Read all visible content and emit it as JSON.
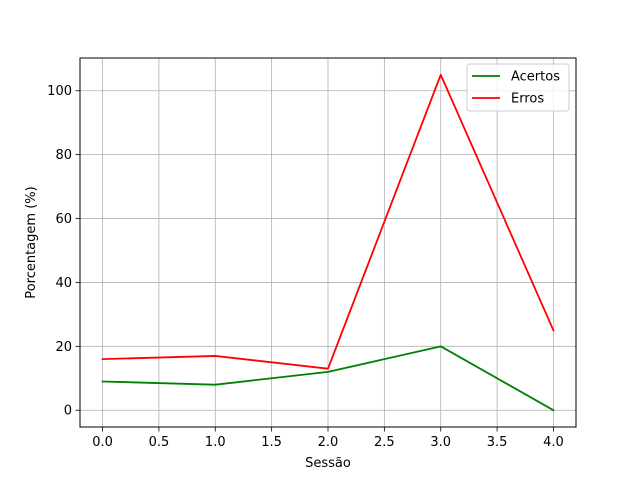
{
  "chart_data": {
    "type": "line",
    "title": "",
    "xlabel": "Sessão",
    "ylabel": "Porcentagem (%)",
    "x": [
      0,
      1,
      2,
      3,
      4
    ],
    "series": [
      {
        "name": "Acertos",
        "color": "#008000",
        "values": [
          9,
          8,
          12,
          20,
          0
        ]
      },
      {
        "name": "Erros",
        "color": "#ff0000",
        "values": [
          16,
          17,
          13,
          105,
          25
        ]
      }
    ],
    "xlim": [
      -0.2,
      4.2
    ],
    "ylim": [
      -5.25,
      110.25
    ],
    "xticks": [
      0.0,
      0.5,
      1.0,
      1.5,
      2.0,
      2.5,
      3.0,
      3.5,
      4.0
    ],
    "xtick_labels": [
      "0.0",
      "0.5",
      "1.0",
      "1.5",
      "2.0",
      "2.5",
      "3.0",
      "3.5",
      "4.0"
    ],
    "yticks": [
      0,
      20,
      40,
      60,
      80,
      100
    ],
    "ytick_labels": [
      "0",
      "20",
      "40",
      "60",
      "80",
      "100"
    ],
    "grid": true,
    "legend_position": "top-right"
  }
}
